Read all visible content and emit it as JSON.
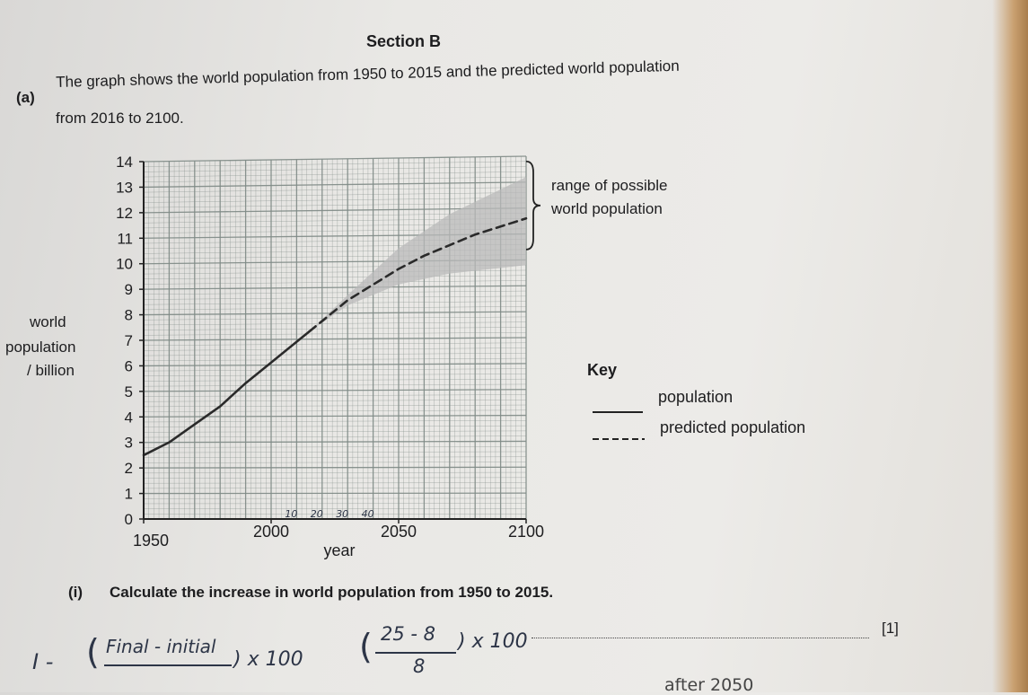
{
  "header": {
    "section": "Section B"
  },
  "question": {
    "part": "(a)",
    "intro_line1": "The graph shows the world population from 1950 to 2015 and the predicted world population",
    "intro_line2": "from 2016 to 2100.",
    "sub_part": "(i)",
    "sub_text": "Calculate the increase in world population from 1950 to 2015.",
    "marks": "[1]"
  },
  "legend": {
    "title": "Key",
    "solid": "population",
    "dashed": "predicted population",
    "range_line1": "range of possible",
    "range_line2": "world population"
  },
  "chart_data": {
    "type": "line",
    "xlabel": "year",
    "ylabel_lines": [
      "world",
      "population",
      "/ billion"
    ],
    "xlim": [
      1950,
      2100
    ],
    "ylim": [
      0,
      14
    ],
    "x_ticks": [
      1950,
      2000,
      2050,
      2100
    ],
    "y_ticks": [
      0,
      1,
      2,
      3,
      4,
      5,
      6,
      7,
      8,
      9,
      10,
      11,
      12,
      13,
      14
    ],
    "grid": true,
    "series": [
      {
        "name": "population",
        "style": "solid",
        "x": [
          1950,
          1960,
          1970,
          1980,
          1990,
          2000,
          2010,
          2015
        ],
        "y": [
          2.5,
          3.0,
          3.7,
          4.4,
          5.3,
          6.1,
          6.9,
          7.3
        ]
      },
      {
        "name": "predicted population",
        "style": "dashed",
        "x": [
          2015,
          2020,
          2030,
          2040,
          2050,
          2060,
          2070,
          2080,
          2090,
          2100
        ],
        "y": [
          7.3,
          7.7,
          8.5,
          9.1,
          9.7,
          10.2,
          10.6,
          11.0,
          11.3,
          11.6
        ]
      }
    ],
    "range_band": {
      "x": [
        2015,
        2030,
        2050,
        2070,
        2100
      ],
      "lower": [
        7.3,
        8.3,
        9.1,
        9.5,
        9.8
      ],
      "upper": [
        7.3,
        8.7,
        10.5,
        11.8,
        13.2
      ]
    },
    "colors": {
      "line": "#2a2a2a",
      "band": "#b9b9b9",
      "grid": "#7f8a86"
    }
  },
  "handwriting": {
    "year_notes": [
      "10",
      "20",
      "30",
      "40"
    ],
    "formula1_prefix": "I -",
    "formula1_num": "Final - initial",
    "formula1_suffix": ") x 100",
    "formula2_num": "25 - 8",
    "formula2_den": "8",
    "formula2_suffix": ") x 100",
    "bottom_note": "after 2050"
  }
}
